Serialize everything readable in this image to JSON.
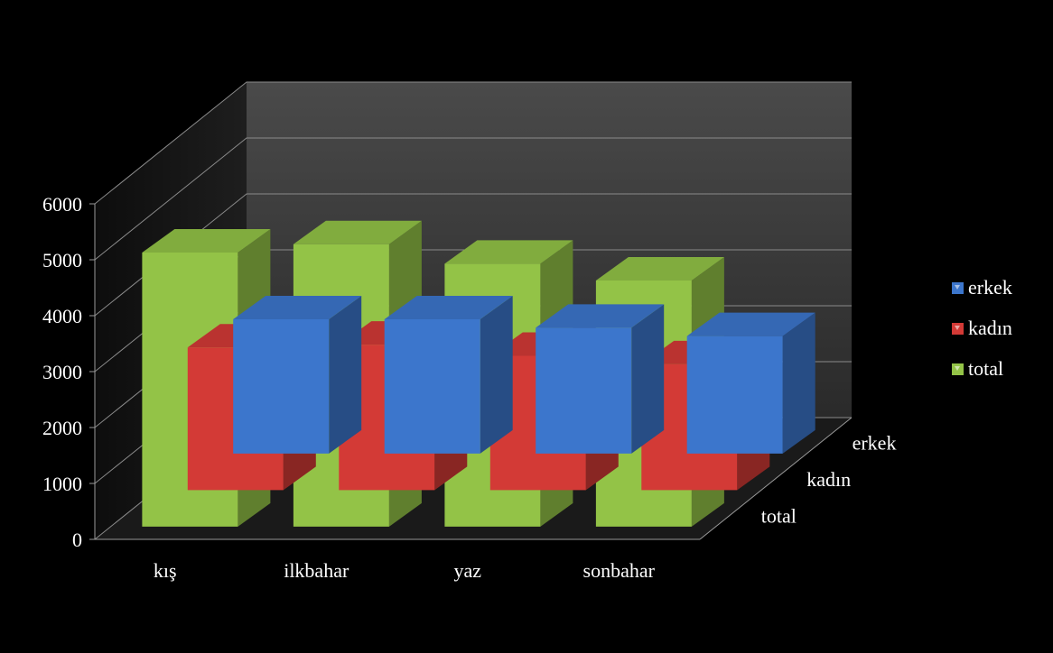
{
  "chart_data": {
    "type": "bar",
    "categories": [
      "kış",
      "ilkbahar",
      "yaz",
      "sonbahar"
    ],
    "series": [
      {
        "name": "erkek",
        "color": "#3c76cc",
        "values": [
          2400,
          2400,
          2250,
          2100
        ]
      },
      {
        "name": "kadın",
        "color": "#d33a36",
        "values": [
          2550,
          2600,
          2400,
          2250
        ]
      },
      {
        "name": "total",
        "color": "#93c347",
        "values": [
          4900,
          5050,
          4700,
          4400
        ]
      }
    ],
    "y_ticks": [
      "0",
      "1000",
      "2000",
      "3000",
      "4000",
      "5000",
      "6000"
    ],
    "ylim": [
      0,
      6000
    ],
    "depth_labels": [
      "erkek",
      "kadın",
      "total"
    ],
    "legend_position": "right",
    "grid": true,
    "title": "",
    "xlabel": "",
    "ylabel": ""
  }
}
